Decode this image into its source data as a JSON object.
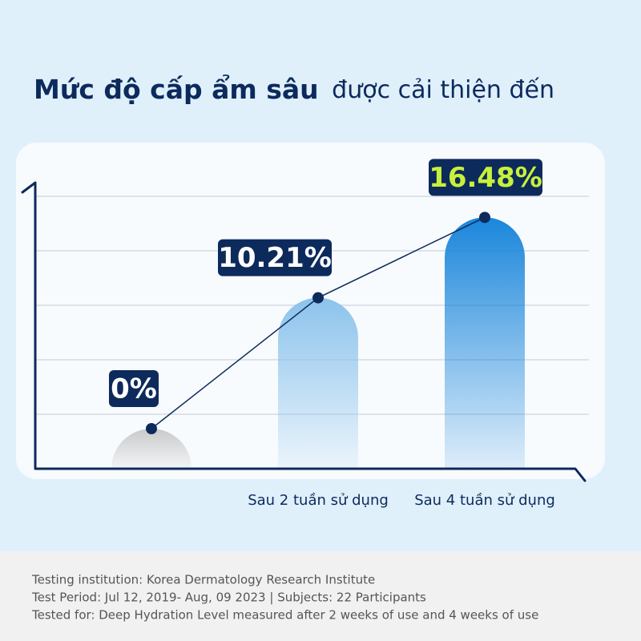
{
  "chart_data": {
    "type": "bar",
    "title": "Mức độ cấp ẩm sâu",
    "subtitle": "được cải thiện đến",
    "categories": [
      null,
      "Sau 2 tuần sử dụng",
      "Sau 4 tuần sử dụng"
    ],
    "values": [
      0,
      10.21,
      16.48
    ],
    "value_labels": [
      "0%",
      "10.21%",
      "16.48%"
    ],
    "label_colors": [
      "#ffffff",
      "#ffffff",
      "#c8f03a"
    ],
    "colors": [
      "#c9c9c9",
      "#8cc3ec",
      "#1a86db"
    ],
    "line_color": "#0d2a5c",
    "ylim": [
      0,
      20
    ],
    "footnotes": [
      "Testing institution: Korea Dermatology Research Institute",
      "Test Period: Jul 12, 2019- Aug, 09 2023  |  Subjects: 22 Participants",
      "Tested for: Deep Hydration Level measured after 2 weeks of use and 4 weeks of use"
    ]
  }
}
